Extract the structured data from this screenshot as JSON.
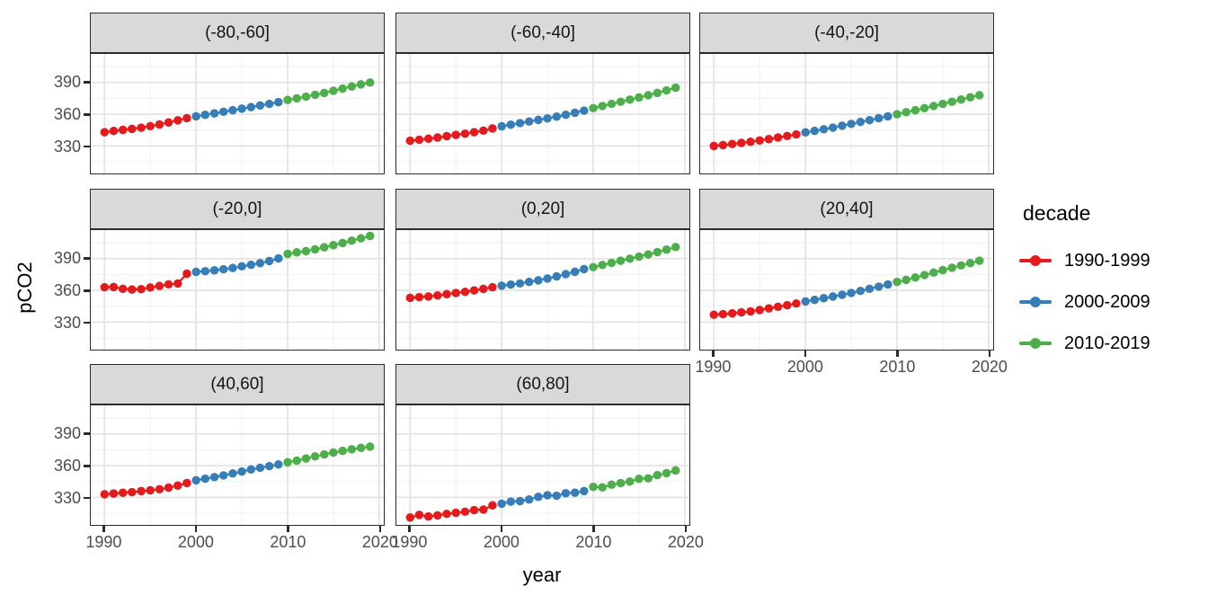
{
  "figure": {
    "background": "#FFFFFF",
    "y_axis_title": "pCO2",
    "x_axis_title": "year",
    "legend": {
      "title": "decade",
      "position": "right",
      "entries": [
        {
          "label": "1990-1999",
          "color": "#E41A1C"
        },
        {
          "label": "2000-2009",
          "color": "#377EB8"
        },
        {
          "label": "2010-2019",
          "color": "#4DAF4A"
        }
      ]
    }
  },
  "chart_data": {
    "type": "line",
    "title": "",
    "xlabel": "year",
    "ylabel": "pCO2",
    "grid": "major+minor",
    "legend_position": "right",
    "xlim": [
      1988.5,
      2020.5
    ],
    "ylim": [
      304,
      417
    ],
    "x_ticks": [
      "1990",
      "2000",
      "2010",
      "2020"
    ],
    "y_ticks": [
      "330",
      "360",
      "390"
    ],
    "x_minor": [
      1995,
      2005,
      2015
    ],
    "y_minor": [
      315,
      345,
      375,
      405
    ],
    "x": [
      1990,
      1991,
      1992,
      1993,
      1994,
      1995,
      1996,
      1997,
      1998,
      1999,
      2000,
      2001,
      2002,
      2003,
      2004,
      2005,
      2006,
      2007,
      2008,
      2009,
      2010,
      2011,
      2012,
      2013,
      2014,
      2015,
      2016,
      2017,
      2018,
      2019
    ],
    "decades": [
      {
        "name": "1990-1999",
        "from": 1990,
        "to": 1999,
        "color": "#E41A1C"
      },
      {
        "name": "2000-2009",
        "from": 2000,
        "to": 2009,
        "color": "#377EB8"
      },
      {
        "name": "2010-2019",
        "from": 2010,
        "to": 2019,
        "color": "#4DAF4A"
      }
    ],
    "facets": [
      {
        "label": "(-80,-60]",
        "values": [
          343,
          344.2,
          345.2,
          346.2,
          347.3,
          348.8,
          350.3,
          352.2,
          354.2,
          356.3,
          358,
          359.4,
          360.8,
          362.3,
          363.8,
          365.3,
          366.8,
          368.3,
          369.8,
          371.5,
          373.5,
          375,
          376.6,
          378.4,
          380.2,
          382.2,
          384.2,
          386.2,
          388.2,
          390
        ]
      },
      {
        "label": "(-60,-40]",
        "values": [
          335,
          335.9,
          336.9,
          338,
          339.2,
          340.4,
          341.7,
          343,
          344.5,
          346.6,
          348.6,
          350.1,
          351.6,
          353.1,
          354.6,
          356.1,
          357.7,
          359.5,
          361.4,
          363.4,
          365.8,
          367.8,
          369.8,
          371.8,
          373.8,
          375.9,
          378,
          380.2,
          382.5,
          385
        ]
      },
      {
        "label": "(-40,-20]",
        "values": [
          330,
          330.9,
          331.9,
          332.9,
          334,
          335.2,
          336.5,
          338,
          339.4,
          340.9,
          342.8,
          344.3,
          345.8,
          347.4,
          349.1,
          350.9,
          352.7,
          354.4,
          356.2,
          358,
          360,
          361.9,
          363.8,
          365.8,
          367.8,
          369.8,
          371.9,
          373.9,
          376,
          378
        ]
      },
      {
        "label": "(-20,0]",
        "values": [
          363,
          363.2,
          361.5,
          360.8,
          361.2,
          362.8,
          364.2,
          365.8,
          366.5,
          375.8,
          377.5,
          378.2,
          379,
          380,
          381.2,
          382.8,
          384.2,
          385.8,
          387.8,
          390.2,
          394.5,
          396,
          397.2,
          398.8,
          400.8,
          402.8,
          404.8,
          407,
          409.2,
          411.5
        ]
      },
      {
        "label": "(0,20]",
        "values": [
          353,
          353.6,
          354.2,
          355.2,
          356.5,
          357.6,
          358.7,
          360,
          361.4,
          363,
          364.4,
          365.5,
          366.6,
          368,
          369.5,
          371.2,
          373.2,
          375.4,
          377.6,
          380.2,
          382,
          384,
          386,
          388,
          390,
          392,
          394,
          396.2,
          398.5,
          401
        ]
      },
      {
        "label": "(20,40]",
        "values": [
          337,
          337.6,
          338.3,
          339.2,
          340.2,
          341.5,
          343,
          344.5,
          346,
          347.6,
          349.5,
          351,
          352.6,
          354.2,
          355.8,
          357.6,
          359.5,
          361.5,
          363.5,
          365.6,
          368,
          370,
          372.2,
          374.5,
          376.8,
          379.2,
          381.4,
          383.6,
          385.8,
          388
        ]
      },
      {
        "label": "(40,60]",
        "values": [
          333,
          333.6,
          334.4,
          335,
          336,
          336.7,
          337.7,
          339.2,
          341.2,
          343.6,
          346.2,
          347.7,
          349.2,
          350.8,
          352.6,
          354.5,
          356.4,
          358,
          359.6,
          361.2,
          363.2,
          364.8,
          366.8,
          368.8,
          370.6,
          372.4,
          374,
          375.5,
          376.8,
          378
        ]
      },
      {
        "label": "(60,80]",
        "values": [
          311,
          313.5,
          312,
          313,
          314.5,
          315.5,
          316.5,
          318,
          318.5,
          322.5,
          324,
          326,
          326.5,
          328,
          330.5,
          332,
          331.5,
          334,
          334.5,
          336,
          340,
          339.5,
          342,
          343.5,
          345,
          347.5,
          348,
          351,
          353,
          355.5
        ]
      }
    ]
  }
}
